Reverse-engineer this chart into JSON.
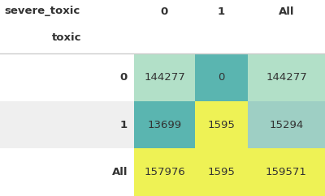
{
  "col_header": [
    "severe_toxic",
    "0",
    "1",
    "All"
  ],
  "row_header": [
    "toxic",
    "0",
    "1",
    "All"
  ],
  "cell_values": [
    [
      "144277",
      "0",
      "144277"
    ],
    [
      "13699",
      "1595",
      "15294"
    ],
    [
      "157976",
      "1595",
      "159571"
    ]
  ],
  "cell_colors": [
    [
      "#b2e0c8",
      "#5ab5b0",
      "#b2e0c8"
    ],
    [
      "#5ab5b0",
      "#eef255",
      "#9ecfc4"
    ],
    [
      "#eef255",
      "#eef255",
      "#eef255"
    ]
  ],
  "bg_color": "#ffffff",
  "label_bg_row0": "#ffffff",
  "label_bg_row1": "#efefef",
  "label_bg_row2": "#ffffff",
  "header_fontsize": 9.5,
  "cell_fontsize": 9.5,
  "sep_line_color": "#cccccc",
  "text_color": "#333333"
}
